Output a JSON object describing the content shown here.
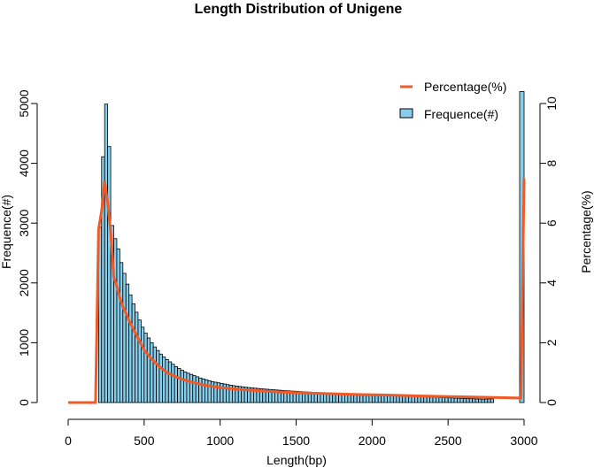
{
  "chart_data": {
    "type": "bar",
    "title": "Length Distribution of Unigene",
    "xlabel": "Length(bp)",
    "ylabel": "Frequence(#)",
    "y2label": "Percentage(%)",
    "xlim": [
      0,
      3000
    ],
    "ylim": [
      0,
      5000
    ],
    "y2lim": [
      0,
      10
    ],
    "xticks": [
      "0",
      "500",
      "1000",
      "1500",
      "2000",
      "2500",
      "3000"
    ],
    "yticks": [
      "0",
      "1000",
      "2000",
      "3000",
      "4000",
      "5000"
    ],
    "y2ticks": [
      "0",
      "2",
      "4",
      "6",
      "8",
      "10"
    ],
    "bin_width": 20,
    "bin_start": 200,
    "frequency": [
      2930,
      4110,
      4990,
      4280,
      2960,
      2740,
      2570,
      2340,
      2160,
      1980,
      1800,
      1650,
      1510,
      1380,
      1260,
      1160,
      1080,
      1000,
      930,
      870,
      810,
      760,
      720,
      680,
      640,
      600,
      570,
      540,
      510,
      490,
      470,
      450,
      430,
      410,
      395,
      380,
      365,
      350,
      340,
      330,
      320,
      310,
      300,
      290,
      282,
      275,
      268,
      262,
      256,
      250,
      245,
      240,
      235,
      230,
      226,
      222,
      218,
      214,
      210,
      206,
      202,
      198,
      195,
      192,
      189,
      186,
      183,
      180,
      177,
      174,
      171,
      168,
      165,
      162,
      160,
      158,
      156,
      154,
      152,
      150,
      148,
      146,
      144,
      142,
      140,
      138,
      136,
      134,
      132,
      130,
      128,
      126,
      124,
      122,
      120,
      118,
      116,
      114,
      112,
      110,
      108,
      106,
      104,
      102,
      100,
      98,
      96,
      94,
      92,
      90,
      88,
      86,
      84,
      82,
      80,
      78,
      76,
      74,
      72,
      70,
      68,
      66,
      64,
      62,
      60,
      58,
      56,
      58,
      60,
      62
    ],
    "last_bin": {
      "x": 3000,
      "frequency": 5200
    },
    "series": [
      {
        "name": "Percentage(%)",
        "type": "line",
        "axis": "right",
        "color": "#F05A28",
        "x": [
          0,
          180,
          200,
          220,
          240,
          260,
          280,
          300,
          320,
          340,
          360,
          380,
          400,
          420,
          440,
          460,
          480,
          500,
          550,
          600,
          650,
          700,
          750,
          800,
          900,
          1000,
          1100,
          1200,
          1300,
          1400,
          1500,
          1700,
          1900,
          2100,
          2300,
          2500,
          2700,
          2900,
          2980,
          3000
        ],
        "y": [
          0,
          0,
          5.8,
          6.4,
          7.4,
          6.7,
          5.7,
          4.2,
          3.9,
          3.5,
          3.2,
          3.0,
          2.75,
          2.55,
          2.35,
          2.15,
          1.95,
          1.75,
          1.45,
          1.2,
          1.0,
          0.88,
          0.78,
          0.7,
          0.58,
          0.5,
          0.45,
          0.41,
          0.38,
          0.35,
          0.33,
          0.3,
          0.27,
          0.25,
          0.22,
          0.2,
          0.18,
          0.16,
          0.15,
          7.5
        ]
      },
      {
        "name": "Frequence(#)",
        "type": "bar",
        "axis": "left",
        "color": "#87CEEB"
      }
    ],
    "legend_position": "top-right",
    "grid": false
  }
}
